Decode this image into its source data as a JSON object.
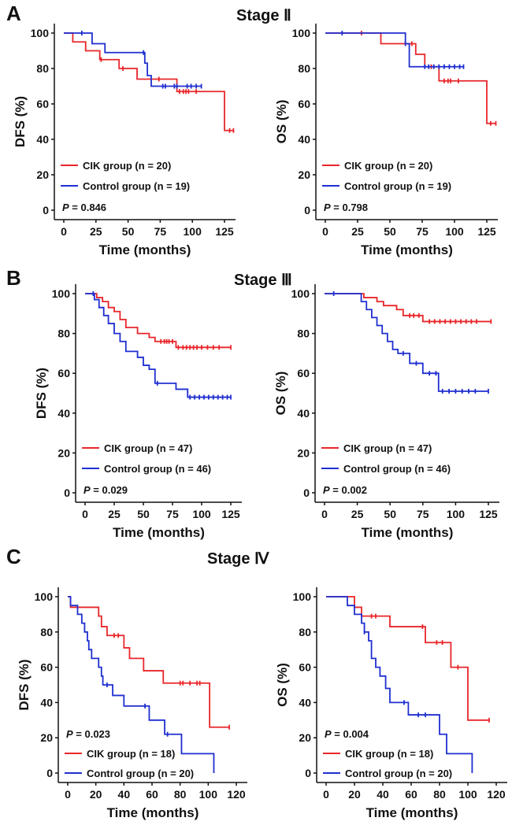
{
  "panels": [
    {
      "letter": "A",
      "stage": "Stage Ⅱ"
    },
    {
      "letter": "B",
      "stage": "Stage Ⅲ"
    },
    {
      "letter": "C",
      "stage": "Stage Ⅳ"
    }
  ],
  "colors": {
    "cik": "#e8262a",
    "control": "#1f2fd0"
  },
  "chart_data": [
    {
      "type": "line",
      "panel": "A",
      "stage": "Stage Ⅱ",
      "xlabel": "Time (months)",
      "ylabel": "DFS (%)",
      "xlim": [
        0,
        125
      ],
      "ylim": [
        0,
        100
      ],
      "xticks": [
        0,
        25,
        50,
        75,
        100,
        125
      ],
      "yticks": [
        0,
        20,
        40,
        60,
        80,
        100
      ],
      "p_value": "0.846",
      "legend_position": "bottom-left",
      "series": [
        {
          "name": "CIK group (n = 20)",
          "color": "#e8262a",
          "end": 132,
          "steps": [
            [
              0,
              100
            ],
            [
              7,
              95
            ],
            [
              17,
              90
            ],
            [
              28,
              85
            ],
            [
              43,
              80
            ],
            [
              57,
              74
            ],
            [
              88,
              67
            ],
            [
              125,
              45
            ]
          ],
          "censored": [
            29,
            46,
            74,
            90,
            93,
            95,
            97,
            103,
            129,
            132
          ]
        },
        {
          "name": "Control group (n = 19)",
          "color": "#1f2fd0",
          "end": 107,
          "steps": [
            [
              0,
              100
            ],
            [
              22,
              94
            ],
            [
              32,
              89
            ],
            [
              63,
              83
            ],
            [
              65,
              76
            ],
            [
              68,
              70
            ]
          ],
          "censored": [
            14,
            62,
            77,
            79,
            86,
            88,
            96,
            99,
            103,
            107
          ]
        }
      ]
    },
    {
      "type": "line",
      "panel": "A",
      "stage": "Stage Ⅱ",
      "xlabel": "Time (months)",
      "ylabel": "OS (%)",
      "xlim": [
        0,
        125
      ],
      "ylim": [
        0,
        100
      ],
      "xticks": [
        0,
        25,
        50,
        75,
        100,
        125
      ],
      "yticks": [
        0,
        20,
        40,
        60,
        80,
        100
      ],
      "p_value": "0.798",
      "legend_position": "bottom-left",
      "series": [
        {
          "name": "CIK group (n = 20)",
          "color": "#e8262a",
          "end": 132,
          "steps": [
            [
              0,
              100
            ],
            [
              43,
              94
            ],
            [
              70,
              88
            ],
            [
              77,
              81
            ],
            [
              88,
              73
            ],
            [
              125,
              49
            ]
          ],
          "censored": [
            28,
            67,
            82,
            92,
            95,
            97,
            103,
            128,
            132
          ]
        },
        {
          "name": "Control group (n = 19)",
          "color": "#1f2fd0",
          "end": 107,
          "steps": [
            [
              0,
              100
            ],
            [
              62,
              94
            ],
            [
              65,
              81
            ]
          ],
          "censored": [
            13,
            62,
            77,
            80,
            84,
            88,
            92,
            96,
            100,
            104,
            107
          ]
        }
      ]
    },
    {
      "type": "line",
      "panel": "B",
      "stage": "Stage Ⅲ",
      "xlabel": "Time (months)",
      "ylabel": "DFS (%)",
      "xlim": [
        0,
        125
      ],
      "ylim": [
        0,
        100
      ],
      "xticks": [
        0,
        25,
        50,
        75,
        100,
        125
      ],
      "yticks": [
        0,
        20,
        40,
        60,
        80,
        100
      ],
      "p_value": "0.029",
      "legend_position": "bottom-left",
      "series": [
        {
          "name": "CIK group (n = 47)",
          "color": "#e8262a",
          "end": 125,
          "steps": [
            [
              0,
              100
            ],
            [
              10,
              98
            ],
            [
              15,
              96
            ],
            [
              20,
              93
            ],
            [
              25,
              91
            ],
            [
              30,
              87
            ],
            [
              35,
              83
            ],
            [
              45,
              80
            ],
            [
              55,
              78
            ],
            [
              60,
              76
            ],
            [
              78,
              73
            ]
          ],
          "censored": [
            65,
            68,
            70,
            72,
            75,
            80,
            84,
            87,
            90,
            93,
            96,
            100,
            105,
            110,
            115,
            125
          ]
        },
        {
          "name": "Control group (n = 46)",
          "color": "#1f2fd0",
          "end": 125,
          "steps": [
            [
              0,
              100
            ],
            [
              8,
              97
            ],
            [
              12,
              93
            ],
            [
              16,
              89
            ],
            [
              20,
              85
            ],
            [
              25,
              80
            ],
            [
              30,
              76
            ],
            [
              35,
              71
            ],
            [
              45,
              68
            ],
            [
              50,
              64
            ],
            [
              55,
              62
            ],
            [
              60,
              55
            ],
            [
              78,
              52
            ],
            [
              88,
              48
            ]
          ],
          "censored": [
            7,
            62,
            90,
            94,
            98,
            102,
            106,
            110,
            114,
            118,
            122,
            125
          ]
        }
      ]
    },
    {
      "type": "line",
      "panel": "B",
      "stage": "Stage Ⅲ",
      "xlabel": "Time (months)",
      "ylabel": "OS (%)",
      "xlim": [
        0,
        125
      ],
      "ylim": [
        0,
        100
      ],
      "xticks": [
        0,
        25,
        50,
        75,
        100,
        125
      ],
      "yticks": [
        0,
        20,
        40,
        60,
        80,
        100
      ],
      "p_value": "0.002",
      "legend_position": "bottom-left",
      "series": [
        {
          "name": "CIK group (n = 47)",
          "color": "#e8262a",
          "end": 127,
          "steps": [
            [
              0,
              100
            ],
            [
              30,
              98
            ],
            [
              40,
              96
            ],
            [
              45,
              94
            ],
            [
              55,
              92
            ],
            [
              60,
              89
            ],
            [
              75,
              86
            ]
          ],
          "censored": [
            65,
            68,
            72,
            80,
            84,
            88,
            92,
            96,
            100,
            104,
            108,
            112,
            116,
            127
          ]
        },
        {
          "name": "Control group (n = 46)",
          "color": "#1f2fd0",
          "end": 125,
          "steps": [
            [
              0,
              100
            ],
            [
              28,
              96
            ],
            [
              32,
              92
            ],
            [
              36,
              88
            ],
            [
              40,
              84
            ],
            [
              44,
              80
            ],
            [
              48,
              76
            ],
            [
              52,
              72
            ],
            [
              56,
              70
            ],
            [
              65,
              65
            ],
            [
              75,
              60
            ],
            [
              87,
              51
            ]
          ],
          "censored": [
            7,
            60,
            70,
            80,
            85,
            90,
            95,
            100,
            105,
            110,
            115,
            125
          ]
        }
      ]
    },
    {
      "type": "line",
      "panel": "C",
      "stage": "Stage Ⅳ",
      "xlabel": "Time (months)",
      "ylabel": "DFS (%)",
      "xlim": [
        0,
        120
      ],
      "ylim": [
        0,
        100
      ],
      "xticks": [
        0,
        20,
        40,
        60,
        80,
        100,
        120
      ],
      "yticks": [
        0,
        20,
        40,
        60,
        80,
        100
      ],
      "p_value": "0.023",
      "legend_position": "bottom-left",
      "series": [
        {
          "name": "CIK group (n = 18)",
          "color": "#e8262a",
          "end": 115,
          "steps": [
            [
              0,
              100
            ],
            [
              2,
              94
            ],
            [
              22,
              89
            ],
            [
              24,
              83
            ],
            [
              28,
              78
            ],
            [
              40,
              71
            ],
            [
              44,
              65
            ],
            [
              54,
              58
            ],
            [
              68,
              51
            ],
            [
              101,
              26
            ]
          ],
          "censored": [
            33,
            36,
            80,
            82,
            87,
            92,
            94,
            115
          ]
        },
        {
          "name": "Control group (n = 20)",
          "color": "#1f2fd0",
          "end": 104,
          "steps": [
            [
              0,
              100
            ],
            [
              2,
              95
            ],
            [
              7,
              90
            ],
            [
              10,
              85
            ],
            [
              12,
              80
            ],
            [
              14,
              75
            ],
            [
              15,
              70
            ],
            [
              17,
              65
            ],
            [
              22,
              60
            ],
            [
              24,
              55
            ],
            [
              25,
              50
            ],
            [
              32,
              44
            ],
            [
              40,
              38
            ],
            [
              58,
              30
            ],
            [
              69,
              22
            ],
            [
              81,
              11
            ],
            [
              104,
              0
            ]
          ],
          "censored": [
            28,
            55,
            71
          ]
        }
      ]
    },
    {
      "type": "line",
      "panel": "C",
      "stage": "Stage Ⅳ",
      "xlabel": "Time (months)",
      "ylabel": "OS (%)",
      "xlim": [
        0,
        120
      ],
      "ylim": [
        0,
        100
      ],
      "xticks": [
        0,
        20,
        40,
        60,
        80,
        100,
        120
      ],
      "yticks": [
        0,
        20,
        40,
        60,
        80,
        100
      ],
      "p_value": "0.004",
      "legend_position": "bottom-left",
      "series": [
        {
          "name": "CIK group (n = 18)",
          "color": "#e8262a",
          "end": 115,
          "steps": [
            [
              0,
              100
            ],
            [
              20,
              94
            ],
            [
              25,
              89
            ],
            [
              45,
              83
            ],
            [
              70,
              74
            ],
            [
              88,
              60
            ],
            [
              100,
              30
            ]
          ],
          "censored": [
            32,
            35,
            68,
            78,
            82,
            93,
            115
          ]
        },
        {
          "name": "Control group (n = 20)",
          "color": "#1f2fd0",
          "end": 103,
          "steps": [
            [
              0,
              100
            ],
            [
              15,
              95
            ],
            [
              20,
              90
            ],
            [
              25,
              85
            ],
            [
              27,
              80
            ],
            [
              30,
              75
            ],
            [
              32,
              65
            ],
            [
              35,
              60
            ],
            [
              38,
              55
            ],
            [
              42,
              48
            ],
            [
              45,
              40
            ],
            [
              58,
              33
            ],
            [
              80,
              22
            ],
            [
              85,
              11
            ],
            [
              103,
              0
            ]
          ],
          "censored": [
            27,
            55,
            65,
            70
          ]
        }
      ]
    }
  ]
}
